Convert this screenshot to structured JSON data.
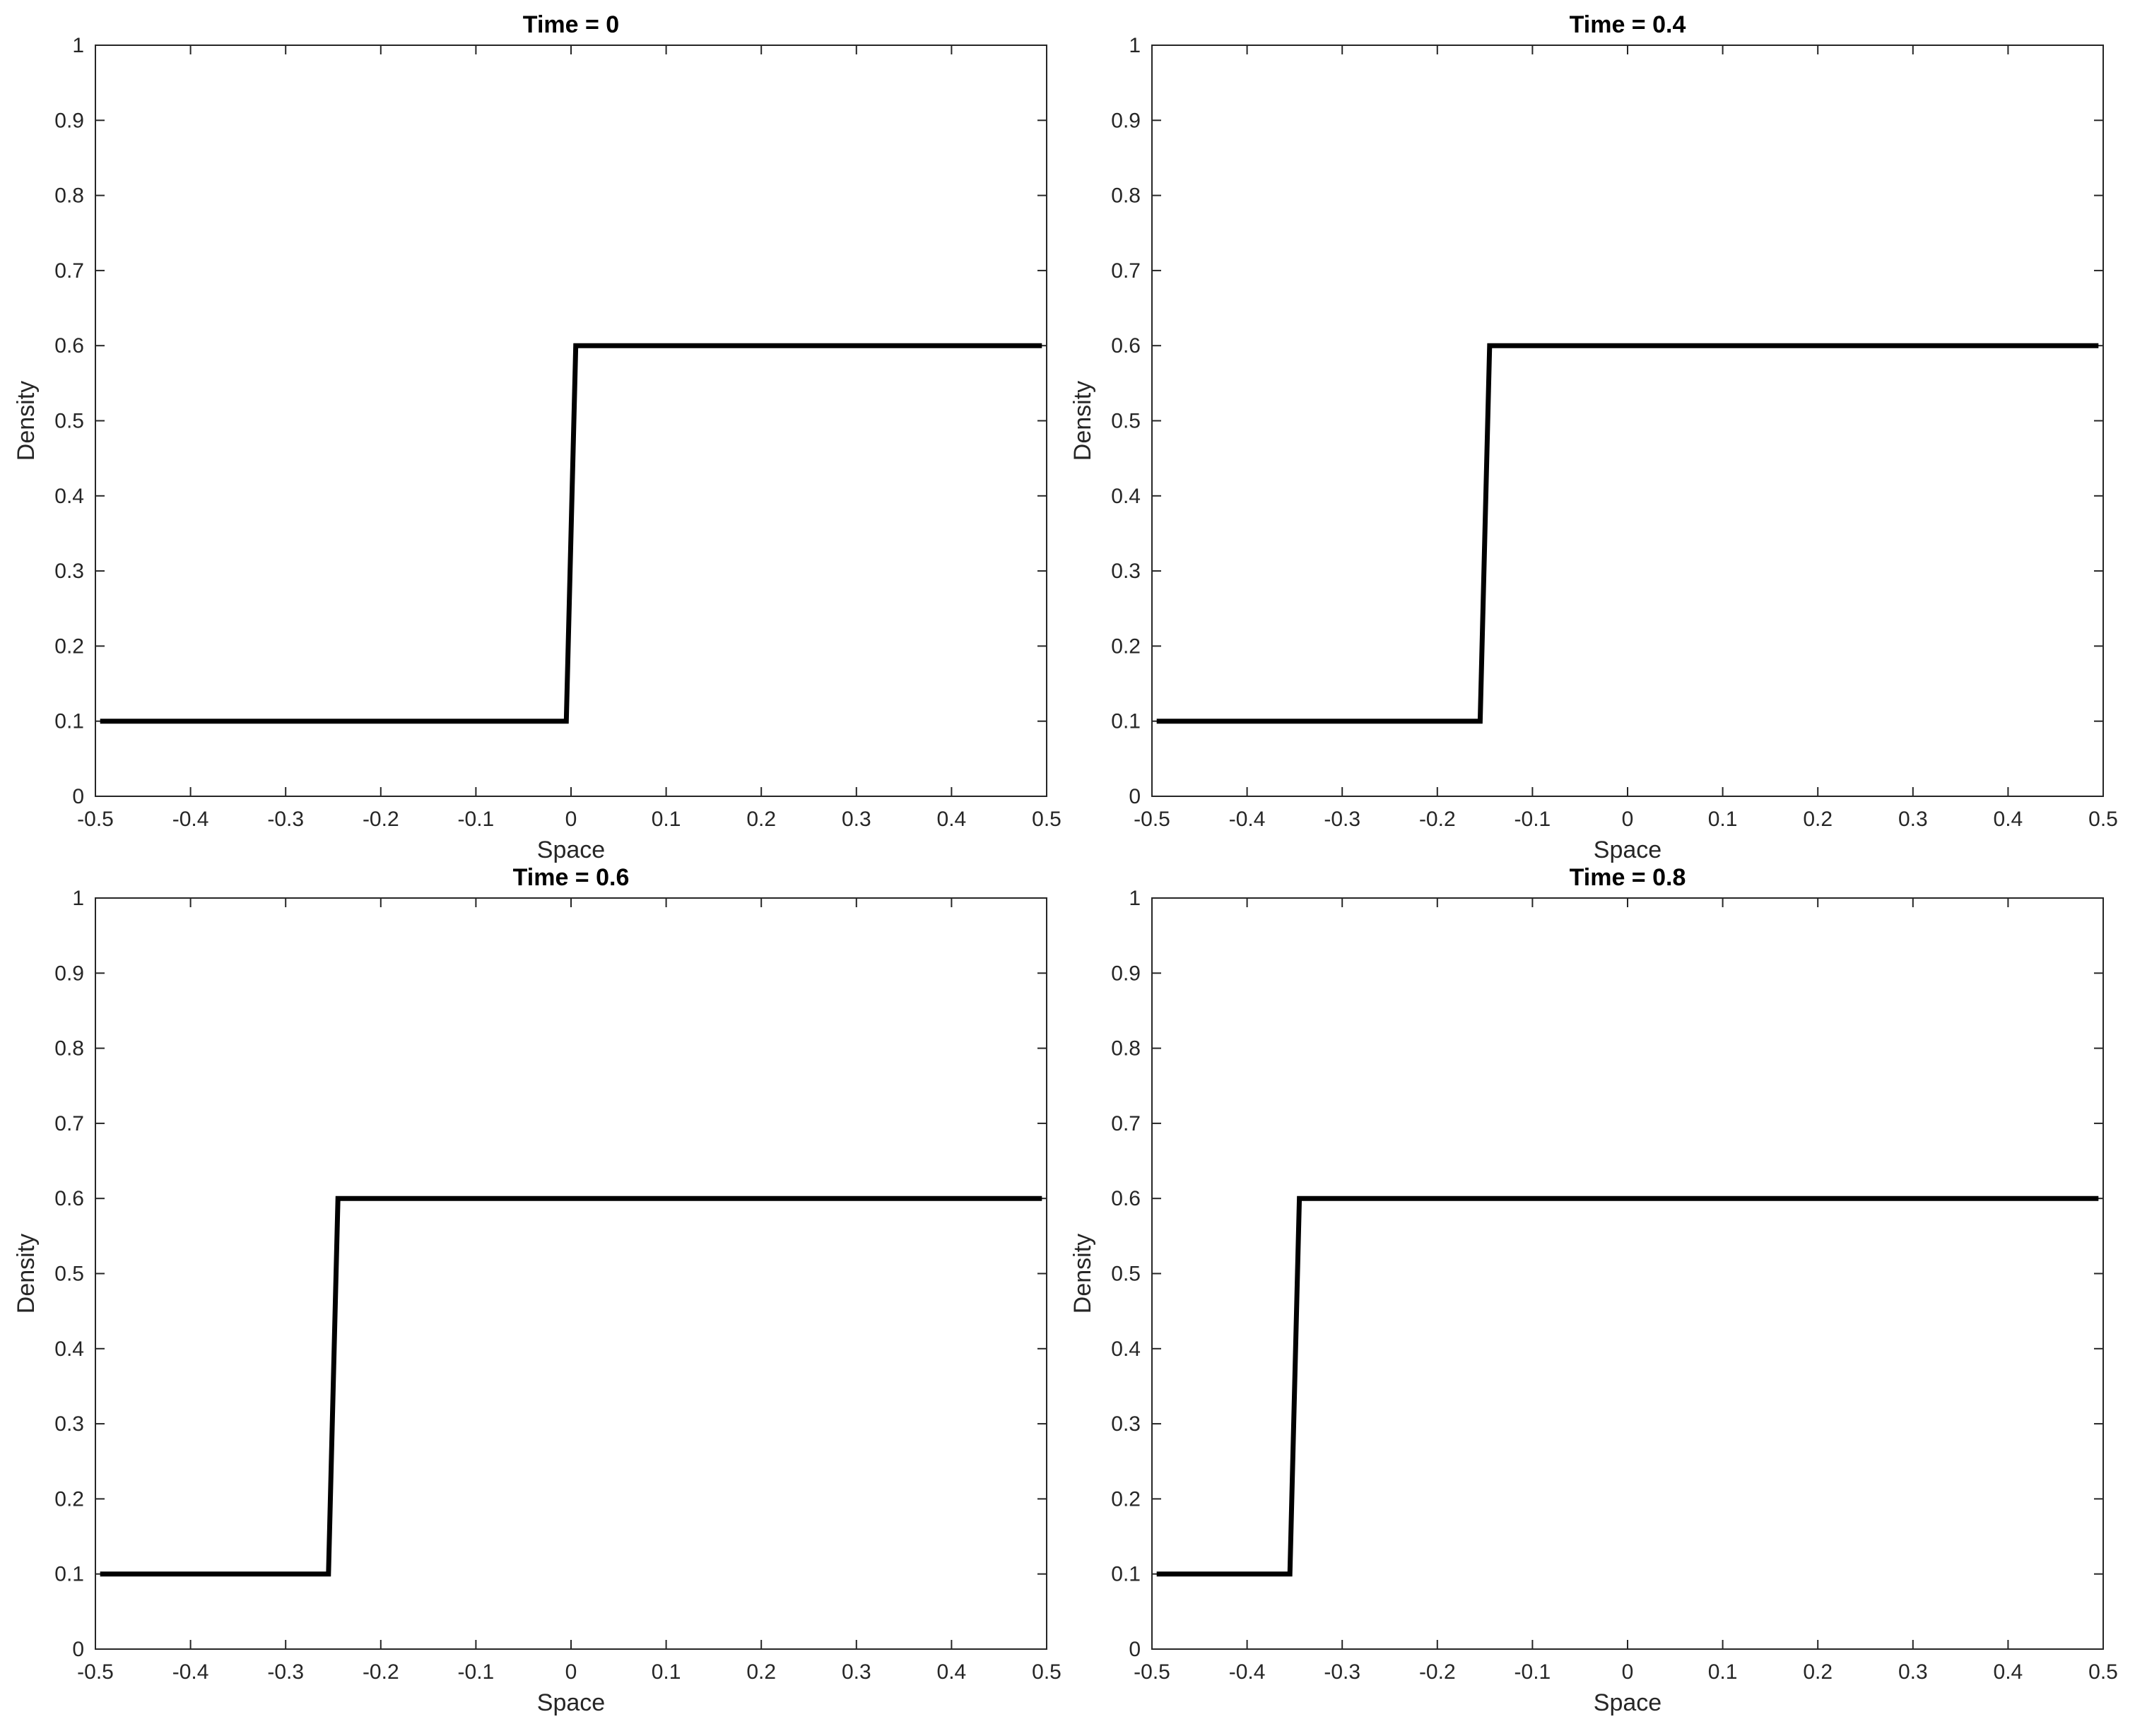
{
  "chart_data": [
    {
      "type": "line",
      "title": "Time = 0",
      "xlabel": "Space",
      "ylabel": "Density",
      "xlim": [
        -0.5,
        0.5
      ],
      "ylim": [
        0,
        1
      ],
      "xticks": [
        "-0.5",
        "-0.4",
        "-0.3",
        "-0.2",
        "-0.1",
        "0",
        "0.1",
        "0.2",
        "0.3",
        "0.4",
        "0.5"
      ],
      "yticks": [
        "0",
        "0.1",
        "0.2",
        "0.3",
        "0.4",
        "0.5",
        "0.6",
        "0.7",
        "0.8",
        "0.9",
        "1"
      ],
      "grid": false,
      "color": "#000000",
      "series": [
        {
          "x": [
            -0.495,
            -0.005,
            0.005,
            0.495
          ],
          "y": [
            0.1,
            0.1,
            0.6,
            0.6
          ]
        }
      ]
    },
    {
      "type": "line",
      "title": "Time = 0.4",
      "xlabel": "Space",
      "ylabel": "Density",
      "xlim": [
        -0.5,
        0.5
      ],
      "ylim": [
        0,
        1
      ],
      "xticks": [
        "-0.5",
        "-0.4",
        "-0.3",
        "-0.2",
        "-0.1",
        "0",
        "0.1",
        "0.2",
        "0.3",
        "0.4",
        "0.5"
      ],
      "yticks": [
        "0",
        "0.1",
        "0.2",
        "0.3",
        "0.4",
        "0.5",
        "0.6",
        "0.7",
        "0.8",
        "0.9",
        "1"
      ],
      "grid": false,
      "color": "#000000",
      "series": [
        {
          "x": [
            -0.495,
            -0.155,
            -0.145,
            0.495
          ],
          "y": [
            0.1,
            0.1,
            0.6,
            0.6
          ]
        }
      ]
    },
    {
      "type": "line",
      "title": "Time = 0.6",
      "xlabel": "Space",
      "ylabel": "Density",
      "xlim": [
        -0.5,
        0.5
      ],
      "ylim": [
        0,
        1
      ],
      "xticks": [
        "-0.5",
        "-0.4",
        "-0.3",
        "-0.2",
        "-0.1",
        "0",
        "0.1",
        "0.2",
        "0.3",
        "0.4",
        "0.5"
      ],
      "yticks": [
        "0",
        "0.1",
        "0.2",
        "0.3",
        "0.4",
        "0.5",
        "0.6",
        "0.7",
        "0.8",
        "0.9",
        "1"
      ],
      "grid": false,
      "color": "#000000",
      "series": [
        {
          "x": [
            -0.495,
            -0.255,
            -0.245,
            0.495
          ],
          "y": [
            0.1,
            0.1,
            0.6,
            0.6
          ]
        }
      ]
    },
    {
      "type": "line",
      "title": "Time = 0.8",
      "xlabel": "Space",
      "ylabel": "Density",
      "xlim": [
        -0.5,
        0.5
      ],
      "ylim": [
        0,
        1
      ],
      "xticks": [
        "-0.5",
        "-0.4",
        "-0.3",
        "-0.2",
        "-0.1",
        "0",
        "0.1",
        "0.2",
        "0.3",
        "0.4",
        "0.5"
      ],
      "yticks": [
        "0",
        "0.1",
        "0.2",
        "0.3",
        "0.4",
        "0.5",
        "0.6",
        "0.7",
        "0.8",
        "0.9",
        "1"
      ],
      "grid": false,
      "color": "#000000",
      "series": [
        {
          "x": [
            -0.495,
            -0.355,
            -0.345,
            0.495
          ],
          "y": [
            0.1,
            0.1,
            0.6,
            0.6
          ]
        }
      ]
    }
  ]
}
